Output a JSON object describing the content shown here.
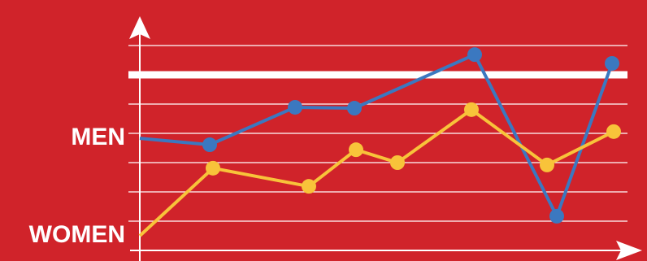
{
  "chart_data": {
    "type": "line",
    "xlim": [
      0,
      618
    ],
    "ylim": [
      0,
      8
    ],
    "yticks": [
      1,
      2,
      3,
      4,
      5,
      6,
      7
    ],
    "grid": true,
    "reference_line": 6,
    "series": [
      {
        "name": "MEN",
        "color": "#3b78c0",
        "x": [
          0,
          86,
          191,
          264,
          412,
          513,
          581
        ],
        "values": [
          3.83,
          3.61,
          4.89,
          4.86,
          6.69,
          1.17,
          6.39
        ]
      },
      {
        "name": "WOMEN",
        "color": "#f8c33a",
        "x": [
          0,
          90,
          208,
          266,
          317,
          408,
          501,
          583
        ],
        "values": [
          0.5,
          2.81,
          2.19,
          3.44,
          3.0,
          4.81,
          2.92,
          4.06
        ]
      }
    ]
  }
}
